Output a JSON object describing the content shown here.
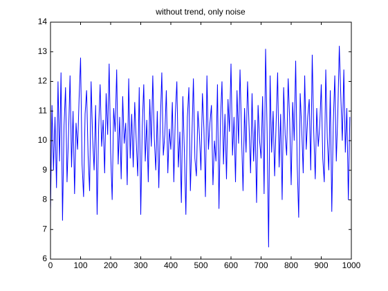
{
  "chart_data": {
    "type": "line",
    "title": "without trend, only noise",
    "x": [
      0,
      5,
      10,
      15,
      20,
      25,
      30,
      35,
      40,
      45,
      50,
      55,
      60,
      65,
      70,
      75,
      80,
      85,
      90,
      95,
      100,
      105,
      110,
      115,
      120,
      125,
      130,
      135,
      140,
      145,
      150,
      155,
      160,
      165,
      170,
      175,
      180,
      185,
      190,
      195,
      200,
      205,
      210,
      215,
      220,
      225,
      230,
      235,
      240,
      245,
      250,
      255,
      260,
      265,
      270,
      275,
      280,
      285,
      290,
      295,
      300,
      305,
      310,
      315,
      320,
      325,
      330,
      335,
      340,
      345,
      350,
      355,
      360,
      365,
      370,
      375,
      380,
      385,
      390,
      395,
      400,
      405,
      410,
      415,
      420,
      425,
      430,
      435,
      440,
      445,
      450,
      455,
      460,
      465,
      470,
      475,
      480,
      485,
      490,
      495,
      500,
      505,
      510,
      515,
      520,
      525,
      530,
      535,
      540,
      545,
      550,
      555,
      560,
      565,
      570,
      575,
      580,
      585,
      590,
      595,
      600,
      605,
      610,
      615,
      620,
      625,
      630,
      635,
      640,
      645,
      650,
      655,
      660,
      665,
      670,
      675,
      680,
      685,
      690,
      695,
      700,
      705,
      710,
      715,
      720,
      725,
      730,
      735,
      740,
      745,
      750,
      755,
      760,
      765,
      770,
      775,
      780,
      785,
      790,
      795,
      800,
      805,
      810,
      815,
      820,
      825,
      830,
      835,
      840,
      845,
      850,
      855,
      860,
      865,
      870,
      875,
      880,
      885,
      890,
      895,
      900,
      905,
      910,
      915,
      920,
      925,
      930,
      935,
      940,
      945,
      950,
      955,
      960,
      965,
      970,
      975,
      980,
      985,
      990,
      995
    ],
    "series": [
      {
        "color": "#0000ff",
        "values": [
          7.6,
          11.2,
          9.0,
          10.8,
          8.4,
          12.0,
          9.3,
          12.3,
          7.3,
          10.5,
          11.8,
          8.6,
          10.2,
          12.2,
          9.1,
          11.0,
          8.2,
          10.6,
          9.7,
          11.4,
          12.8,
          9.2,
          8.1,
          10.9,
          11.7,
          9.5,
          8.3,
          12.0,
          10.1,
          9.0,
          11.2,
          7.5,
          10.4,
          11.9,
          9.8,
          10.7,
          8.9,
          11.6,
          10.2,
          12.6,
          9.6,
          8.0,
          11.1,
          10.3,
          12.4,
          9.2,
          10.8,
          8.7,
          11.5,
          9.9,
          10.6,
          8.5,
          12.1,
          9.4,
          10.9,
          9.1,
          11.3,
          10.0,
          8.8,
          11.8,
          7.5,
          10.5,
          11.9,
          9.3,
          10.7,
          8.6,
          11.4,
          9.8,
          12.2,
          10.1,
          9.0,
          11.0,
          8.4,
          10.6,
          12.3,
          9.5,
          10.2,
          11.7,
          8.9,
          10.4,
          9.7,
          11.3,
          8.6,
          10.9,
          12.0,
          9.1,
          10.3,
          7.9,
          11.5,
          9.6,
          7.5,
          10.8,
          11.8,
          8.3,
          10.1,
          12.1,
          9.4,
          8.8,
          11.0,
          10.2,
          9.0,
          11.6,
          10.4,
          8.1,
          12.2,
          9.7,
          10.6,
          11.2,
          8.5,
          10.0,
          9.3,
          11.9,
          7.7,
          10.7,
          12.0,
          9.2,
          10.9,
          8.7,
          11.4,
          10.3,
          12.6,
          9.5,
          10.8,
          8.6,
          11.7,
          9.9,
          12.4,
          10.2,
          8.3,
          11.1,
          9.6,
          12.0,
          10.5,
          8.9,
          11.6,
          9.3,
          10.7,
          7.9,
          11.2,
          10.0,
          9.4,
          11.5,
          8.2,
          13.1,
          10.3,
          6.4,
          12.2,
          9.6,
          11.0,
          8.8,
          10.6,
          12.3,
          9.1,
          10.9,
          8.0,
          11.8,
          10.2,
          9.5,
          12.1,
          10.7,
          8.5,
          11.3,
          10.0,
          12.7,
          9.2,
          7.4,
          11.6,
          10.4,
          8.9,
          12.2,
          9.7,
          10.8,
          11.4,
          9.0,
          12.9,
          10.3,
          8.7,
          11.1,
          9.8,
          10.5,
          11.9,
          9.4,
          8.6,
          12.4,
          10.1,
          9.0,
          11.7,
          7.6,
          10.6,
          12.2,
          9.3,
          10.9,
          13.2,
          11.5,
          10.0,
          12.4,
          9.6,
          11.1,
          8.0,
          10.8
        ]
      }
    ],
    "xlim": [
      0,
      1000
    ],
    "xticks": [
      0,
      100,
      200,
      300,
      400,
      500,
      600,
      700,
      800,
      900,
      1000
    ],
    "ylim": [
      6,
      14
    ],
    "yticks": [
      6,
      7,
      8,
      9,
      10,
      11,
      12,
      13,
      14
    ]
  }
}
